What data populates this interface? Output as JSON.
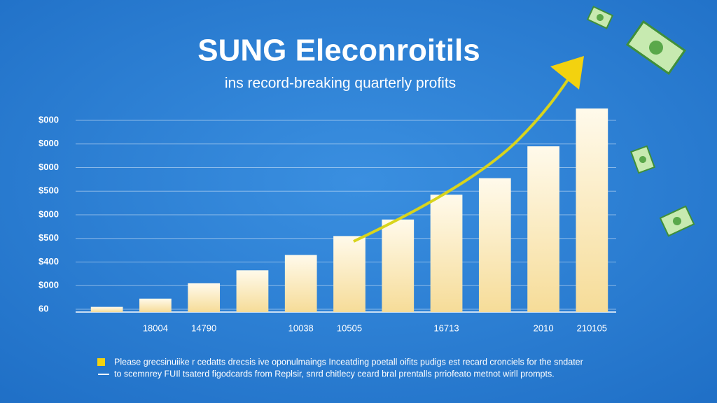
{
  "chart_data": {
    "type": "bar",
    "title": "SUNG Eleconroitils",
    "subtitle": "ins record-breaking quarterly profits",
    "categories": [
      null,
      "18004",
      "14790",
      null,
      "10038",
      "10505",
      null,
      "16713",
      null,
      "2010",
      "210105"
    ],
    "values": [
      0.1,
      0.45,
      1.1,
      1.65,
      2.3,
      3.1,
      3.8,
      4.85,
      5.55,
      6.9,
      8.5
    ],
    "color": "#fbeec4",
    "ylim": [
      0,
      8.6
    ],
    "yticks": [
      {
        "value": 0,
        "label": "60"
      },
      {
        "value": 1,
        "label": "$000"
      },
      {
        "value": 2,
        "label": "$400"
      },
      {
        "value": 3,
        "label": "$500"
      },
      {
        "value": 4,
        "label": "$000"
      },
      {
        "value": 5,
        "label": "$500"
      },
      {
        "value": 6,
        "label": "$000"
      },
      {
        "value": 7,
        "label": "$000"
      },
      {
        "value": 8,
        "label": "$000"
      }
    ],
    "grid": true,
    "notes": [
      "Please grecsinuiike r cedatts drecsis ive oponulmaings Inceatding poetall oifits pudigs est recard cronciels for the  sndater",
      "to scemnrey FUIl tsaterd figodcards from Replsir, snrd chitlecy ceard bral prentalls prriofeato metnot wirll prompts."
    ]
  }
}
